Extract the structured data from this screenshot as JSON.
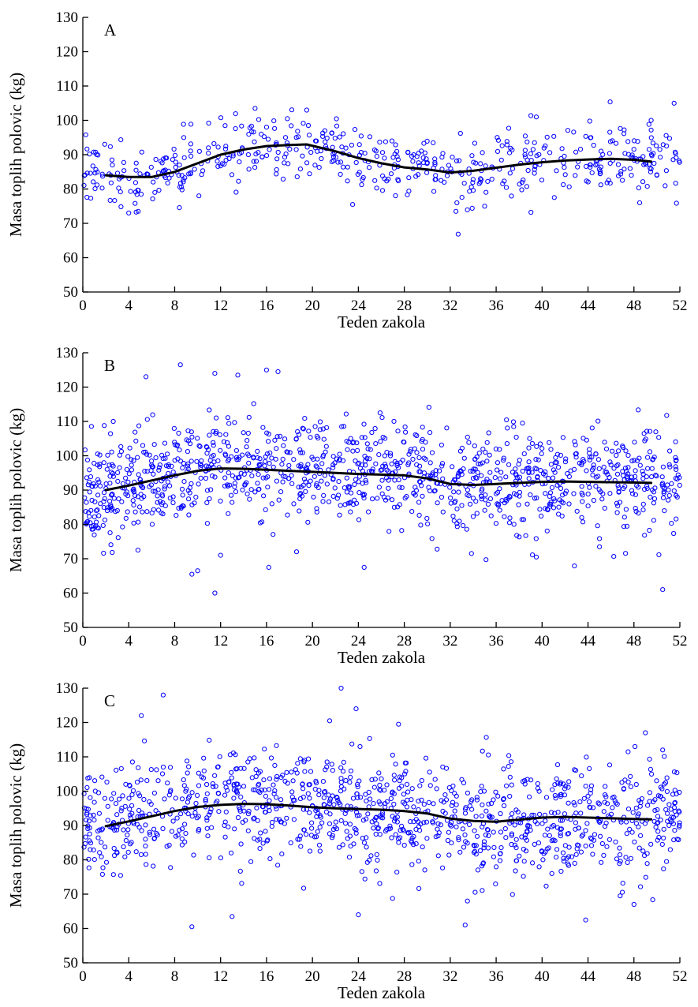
{
  "colors": {
    "points": "#0000ff",
    "trend": "#000000",
    "axes": "#000000"
  },
  "chart_data": [
    {
      "type": "scatter",
      "panel_label": "A",
      "title": "",
      "xlabel": "Teden zakola",
      "ylabel": "Masa toplih polovic (kg)",
      "xlim": [
        0,
        52
      ],
      "ylim": [
        50,
        130
      ],
      "xticks": [
        0,
        4,
        8,
        12,
        16,
        20,
        24,
        28,
        32,
        36,
        40,
        44,
        48,
        52
      ],
      "yticks": [
        50,
        60,
        70,
        80,
        90,
        100,
        110,
        120,
        130
      ],
      "grid": false,
      "legend": "none",
      "n_points": 540,
      "seed": 11,
      "spread": 4.8,
      "outliers": [
        [
          4,
          73
        ],
        [
          15,
          103.5
        ],
        [
          19.5,
          103
        ],
        [
          23.5,
          75.5
        ],
        [
          32.5,
          73.5
        ],
        [
          35,
          75
        ],
        [
          39.5,
          101
        ],
        [
          49.5,
          100
        ],
        [
          51.5,
          105
        ],
        [
          48.5,
          76
        ]
      ],
      "trend": {
        "x": [
          2,
          4,
          6,
          8,
          10,
          12,
          14,
          16,
          18,
          19.5,
          22,
          24,
          26,
          28,
          30,
          32,
          34,
          36,
          38,
          40,
          42,
          44,
          46,
          48,
          49.5
        ],
        "y": [
          84,
          83.5,
          83.5,
          85,
          87.5,
          90,
          91.5,
          92.5,
          92.8,
          93,
          91,
          89,
          87.5,
          86.3,
          85.7,
          84.8,
          85.3,
          86.2,
          87.1,
          87.8,
          88.3,
          88.6,
          88.8,
          88.5,
          88
        ]
      }
    },
    {
      "type": "scatter",
      "panel_label": "B",
      "title": "",
      "xlabel": "Teden zakola",
      "ylabel": "Masa toplih polovic (kg)",
      "xlim": [
        0,
        52
      ],
      "ylim": [
        50,
        130
      ],
      "xticks": [
        0,
        4,
        8,
        12,
        16,
        20,
        24,
        28,
        32,
        36,
        40,
        44,
        48,
        52
      ],
      "yticks": [
        50,
        60,
        70,
        80,
        90,
        100,
        110,
        120,
        130
      ],
      "grid": false,
      "legend": "none",
      "n_points": 1150,
      "seed": 23,
      "spread": 7.2,
      "outliers": [
        [
          8.5,
          126.5
        ],
        [
          11.5,
          124
        ],
        [
          13.5,
          123.5
        ],
        [
          16,
          125
        ],
        [
          17,
          124.5
        ],
        [
          5.5,
          123
        ],
        [
          11.5,
          60
        ],
        [
          9.5,
          65.5
        ],
        [
          10,
          66.5
        ],
        [
          16.2,
          67.5
        ],
        [
          24.5,
          67.5
        ],
        [
          4.8,
          72.5
        ],
        [
          39.5,
          70.5
        ],
        [
          50.5,
          61
        ],
        [
          12,
          71
        ],
        [
          45,
          73.5
        ]
      ],
      "trend": {
        "x": [
          2,
          4,
          6,
          8,
          10,
          12,
          14,
          16,
          18,
          20,
          22,
          24,
          26,
          28,
          30,
          32,
          34,
          36,
          38,
          40,
          42,
          44,
          46,
          48,
          49.5
        ],
        "y": [
          90,
          91.3,
          92.8,
          94.3,
          95.6,
          96.3,
          96.2,
          95.9,
          95.6,
          95.3,
          95,
          94.7,
          94.5,
          94.3,
          93.4,
          91.8,
          91.5,
          91.8,
          92.1,
          92.4,
          92.5,
          92.4,
          92.3,
          92.2,
          92.1
        ]
      }
    },
    {
      "type": "scatter",
      "panel_label": "C",
      "title": "",
      "xlabel": "Teden zakola",
      "ylabel": "Masa toplih polovic (kg)",
      "xlim": [
        0,
        52
      ],
      "ylim": [
        50,
        130
      ],
      "xticks": [
        0,
        4,
        8,
        12,
        16,
        20,
        24,
        28,
        32,
        36,
        40,
        44,
        48,
        52
      ],
      "yticks": [
        50,
        60,
        70,
        80,
        90,
        100,
        110,
        120,
        130
      ],
      "grid": false,
      "legend": "none",
      "n_points": 1100,
      "seed": 37,
      "spread": 8.0,
      "outliers": [
        [
          22.5,
          130
        ],
        [
          7,
          128
        ],
        [
          23.8,
          124
        ],
        [
          5.1,
          122
        ],
        [
          21.5,
          120.5
        ],
        [
          27.5,
          119.5
        ],
        [
          9.5,
          60.5
        ],
        [
          13,
          63.5
        ],
        [
          24,
          64
        ],
        [
          33.3,
          61
        ],
        [
          33.5,
          68
        ],
        [
          46.8,
          69.5
        ],
        [
          48,
          67
        ],
        [
          49,
          117
        ],
        [
          50.5,
          112
        ]
      ],
      "trend": {
        "x": [
          2,
          4,
          6,
          8,
          10,
          12,
          14,
          16,
          18,
          20,
          22,
          24,
          26,
          28,
          30,
          32,
          34,
          36,
          38,
          40,
          42,
          44,
          46,
          48,
          49.5
        ],
        "y": [
          89.8,
          91.2,
          92.7,
          94.2,
          95.4,
          96,
          96.3,
          96.2,
          95.8,
          95.3,
          95,
          94.8,
          94.6,
          94.2,
          93.5,
          92,
          91.3,
          91.1,
          91.7,
          92.3,
          92.5,
          92.3,
          92.1,
          91.9,
          91.8
        ]
      }
    }
  ]
}
